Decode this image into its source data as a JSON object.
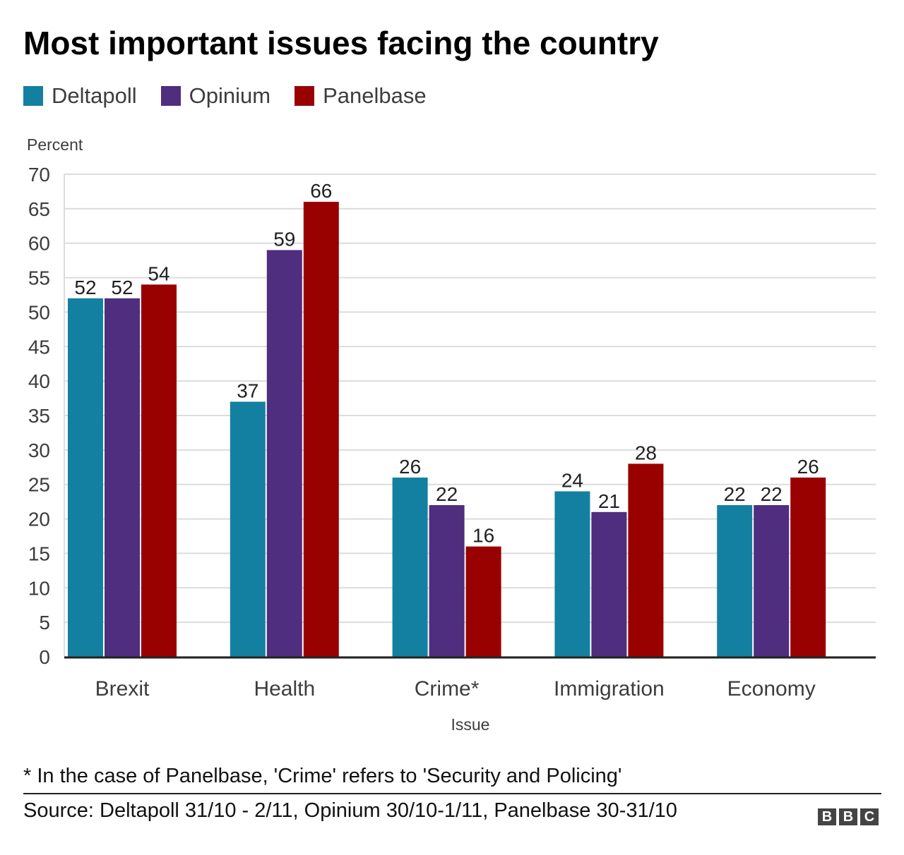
{
  "title": "Most important issues facing the country",
  "legend": [
    {
      "label": "Deltapoll",
      "color": "#1380a1"
    },
    {
      "label": "Opinium",
      "color": "#4f2d7f"
    },
    {
      "label": "Panelbase",
      "color": "#990000"
    }
  ],
  "chart_data": {
    "type": "bar",
    "ylabel": "Percent",
    "xlabel": "Issue",
    "ylim": [
      0,
      70
    ],
    "yticks": [
      0,
      5,
      10,
      15,
      20,
      25,
      30,
      35,
      40,
      45,
      50,
      55,
      60,
      65,
      70
    ],
    "grid": true,
    "legend_position": "top-left",
    "categories": [
      "Brexit",
      "Health",
      "Crime*",
      "Immigration",
      "Economy"
    ],
    "series": [
      {
        "name": "Deltapoll",
        "color": "#1380a1",
        "values": [
          52,
          37,
          26,
          24,
          22
        ]
      },
      {
        "name": "Opinium",
        "color": "#4f2d7f",
        "values": [
          52,
          59,
          22,
          21,
          22
        ]
      },
      {
        "name": "Panelbase",
        "color": "#990000",
        "values": [
          54,
          66,
          16,
          28,
          26
        ]
      }
    ]
  },
  "footnote": "* In the case of Panelbase, 'Crime' refers to 'Security and Policing'",
  "source": "Source: Deltapoll 31/10 - 2/11, Opinium 30/10-1/11, Panelbase 30-31/10",
  "logo": [
    "B",
    "B",
    "C"
  ]
}
